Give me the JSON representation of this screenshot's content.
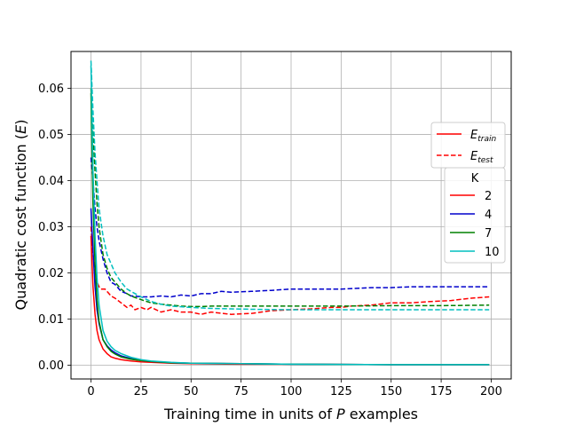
{
  "chart_data": {
    "type": "line",
    "xlabel_prefix": "Training time in units of ",
    "xlabel_var": "P",
    "xlabel_suffix": " examples",
    "ylabel_prefix": "Quadratic cost function (",
    "ylabel_var": "E",
    "ylabel_suffix": ")",
    "xlim": [
      -10,
      210
    ],
    "ylim": [
      -0.003,
      0.068
    ],
    "grid": true,
    "xticks": [
      0,
      25,
      50,
      75,
      100,
      125,
      150,
      175,
      200
    ],
    "yticks": [
      0.0,
      0.01,
      0.02,
      0.03,
      0.04,
      0.05,
      0.06
    ],
    "ytick_labels": [
      "0.00",
      "0.01",
      "0.02",
      "0.03",
      "0.04",
      "0.05",
      "0.06"
    ],
    "style_legend": {
      "placement": "right",
      "entries": [
        {
          "base": "E",
          "sub": "train",
          "dash": "solid"
        },
        {
          "base": "E",
          "sub": "test",
          "dash": "dashed"
        }
      ]
    },
    "k_legend": {
      "title": "K",
      "placement": "right",
      "entries": [
        "2",
        "4",
        "7",
        "10"
      ]
    },
    "series": [
      {
        "name": "2",
        "color": "#ff0000",
        "train": {
          "x": [
            0,
            1,
            2,
            3,
            4,
            6,
            8,
            10,
            12,
            15,
            20,
            25,
            30,
            40,
            50,
            75,
            100,
            125,
            150,
            175,
            199
          ],
          "y": [
            0.028,
            0.017,
            0.011,
            0.0075,
            0.0055,
            0.0035,
            0.0025,
            0.0018,
            0.0015,
            0.0012,
            0.0009,
            0.0007,
            0.0006,
            0.0004,
            0.0003,
            0.0002,
            0.0002,
            0.00015,
            0.0001,
            0.0001,
            0.0001
          ]
        },
        "test": {
          "x": [
            0,
            1,
            2,
            3,
            4,
            5,
            7,
            10,
            12,
            15,
            18,
            20,
            22,
            25,
            28,
            30,
            35,
            40,
            45,
            50,
            55,
            60,
            70,
            80,
            90,
            100,
            110,
            120,
            125,
            130,
            140,
            150,
            160,
            170,
            180,
            190,
            199
          ],
          "y": [
            0.03,
            0.024,
            0.02,
            0.018,
            0.017,
            0.0165,
            0.0165,
            0.015,
            0.0145,
            0.0135,
            0.0125,
            0.013,
            0.012,
            0.0125,
            0.012,
            0.0125,
            0.0115,
            0.012,
            0.0115,
            0.0115,
            0.011,
            0.0115,
            0.011,
            0.0112,
            0.0118,
            0.012,
            0.0122,
            0.0125,
            0.0125,
            0.0128,
            0.013,
            0.0135,
            0.0135,
            0.0138,
            0.014,
            0.0145,
            0.0148
          ]
        }
      },
      {
        "name": "4",
        "color": "#0000cc",
        "train": {
          "x": [
            0,
            1,
            2,
            3,
            4,
            6,
            8,
            10,
            12,
            15,
            20,
            25,
            30,
            40,
            50,
            75,
            100,
            125,
            150,
            175,
            199
          ],
          "y": [
            0.034,
            0.025,
            0.017,
            0.012,
            0.009,
            0.0055,
            0.0042,
            0.0033,
            0.0027,
            0.002,
            0.0014,
            0.001,
            0.0008,
            0.0005,
            0.0004,
            0.0003,
            0.0002,
            0.00015,
            0.0001,
            0.0001,
            0.0001
          ]
        },
        "test": {
          "x": [
            0,
            1,
            2,
            3,
            4,
            5,
            6,
            8,
            10,
            12,
            15,
            18,
            20,
            22,
            25,
            28,
            30,
            35,
            40,
            45,
            50,
            55,
            60,
            65,
            70,
            80,
            90,
            100,
            110,
            125,
            140,
            150,
            160,
            175,
            190,
            199
          ],
          "y": [
            0.045,
            0.04,
            0.034,
            0.03,
            0.027,
            0.025,
            0.023,
            0.02,
            0.018,
            0.0175,
            0.016,
            0.0155,
            0.015,
            0.015,
            0.0148,
            0.0148,
            0.0148,
            0.015,
            0.0148,
            0.0152,
            0.015,
            0.0155,
            0.0155,
            0.016,
            0.0158,
            0.016,
            0.0162,
            0.0165,
            0.0165,
            0.0165,
            0.0168,
            0.0168,
            0.017,
            0.017,
            0.017,
            0.017
          ]
        }
      },
      {
        "name": "7",
        "color": "#008000",
        "train": {
          "x": [
            0,
            1,
            2,
            3,
            4,
            6,
            8,
            10,
            12,
            15,
            20,
            25,
            30,
            40,
            50,
            75,
            100,
            125,
            150,
            175,
            199
          ],
          "y": [
            0.059,
            0.035,
            0.022,
            0.014,
            0.0095,
            0.0055,
            0.004,
            0.003,
            0.0024,
            0.0018,
            0.0013,
            0.001,
            0.0008,
            0.0005,
            0.0004,
            0.0003,
            0.0002,
            0.00015,
            0.0001,
            0.0001,
            0.0001
          ]
        },
        "test": {
          "x": [
            0,
            1,
            2,
            3,
            4,
            5,
            6,
            8,
            10,
            12,
            15,
            18,
            20,
            25,
            30,
            35,
            40,
            45,
            50,
            55,
            60,
            70,
            80,
            90,
            100,
            125,
            150,
            175,
            199
          ],
          "y": [
            0.06,
            0.05,
            0.042,
            0.035,
            0.03,
            0.027,
            0.024,
            0.021,
            0.019,
            0.018,
            0.0165,
            0.0155,
            0.015,
            0.0142,
            0.0135,
            0.0132,
            0.013,
            0.0128,
            0.0127,
            0.0127,
            0.0128,
            0.0128,
            0.0128,
            0.0128,
            0.0128,
            0.0128,
            0.0129,
            0.0129,
            0.013
          ]
        }
      },
      {
        "name": "10",
        "color": "#00bfbf",
        "train": {
          "x": [
            0,
            1,
            2,
            3,
            4,
            6,
            8,
            10,
            12,
            15,
            20,
            25,
            30,
            40,
            50,
            75,
            100,
            125,
            150,
            175,
            199
          ],
          "y": [
            0.065,
            0.042,
            0.028,
            0.019,
            0.013,
            0.0075,
            0.0052,
            0.004,
            0.0032,
            0.0025,
            0.0017,
            0.0012,
            0.0009,
            0.0006,
            0.0004,
            0.0003,
            0.0002,
            0.00015,
            0.0001,
            0.0001,
            0.0001
          ]
        },
        "test": {
          "x": [
            0,
            1,
            2,
            3,
            4,
            5,
            6,
            8,
            10,
            12,
            15,
            18,
            20,
            25,
            30,
            35,
            40,
            50,
            60,
            70,
            80,
            100,
            125,
            150,
            175,
            199
          ],
          "y": [
            0.066,
            0.055,
            0.046,
            0.04,
            0.034,
            0.031,
            0.028,
            0.024,
            0.022,
            0.02,
            0.018,
            0.0165,
            0.016,
            0.0148,
            0.0138,
            0.0132,
            0.0128,
            0.0125,
            0.0123,
            0.0122,
            0.0121,
            0.012,
            0.012,
            0.012,
            0.012,
            0.012
          ]
        }
      }
    ]
  }
}
